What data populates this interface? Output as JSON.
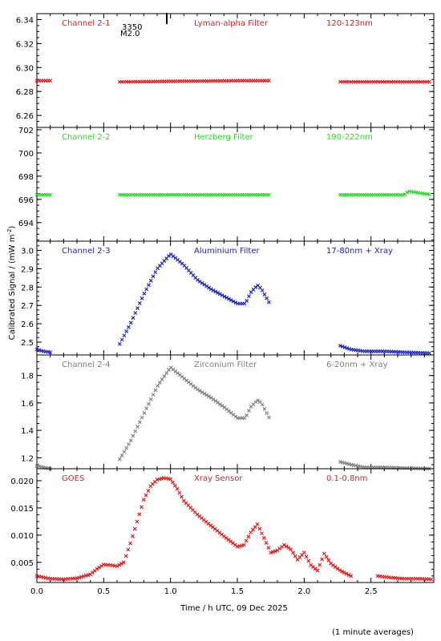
{
  "figure": {
    "ylabel": "Calibrated Signal / (mW m",
    "ylabel_sup": "-2",
    "ylabel_end": ")",
    "xlabel": "Time / h UTC, 09 Dec 2025",
    "footnote": "(1 minute averages)",
    "flare_class": "M2.0",
    "flare_id": "3350"
  },
  "chart_data": [
    {
      "type": "scatter",
      "channel": "Channel 2-1",
      "filter": "Lyman-alpha Filter",
      "band": "120-123nm",
      "color": "#e41a1a",
      "ylim": [
        6.25,
        6.345
      ],
      "yticks": [
        6.26,
        6.28,
        6.3,
        6.32,
        6.34
      ],
      "ytick_labels": [
        "6.26",
        "6.28",
        "6.30",
        "6.32",
        "6.34"
      ],
      "segments": [
        {
          "x": [
            0.0,
            0.1
          ],
          "y": [
            6.289,
            6.289
          ]
        },
        {
          "x": [
            0.62,
            1.0,
            1.5,
            1.75
          ],
          "y": [
            6.288,
            6.2885,
            6.289,
            6.289
          ]
        },
        {
          "x": [
            2.27,
            2.6,
            2.95
          ],
          "y": [
            6.288,
            6.288,
            6.288
          ]
        }
      ]
    },
    {
      "type": "scatter",
      "channel": "Channel 2-2",
      "filter": "Herzberg Filter",
      "band": "190-222nm",
      "color": "#22dd22",
      "ylim": [
        692.4,
        702.2
      ],
      "yticks": [
        694,
        696,
        698,
        700,
        702
      ],
      "ytick_labels": [
        "694",
        "696",
        "698",
        "700",
        "702"
      ],
      "segments": [
        {
          "x": [
            0.0,
            0.1
          ],
          "y": [
            696.4,
            696.4
          ]
        },
        {
          "x": [
            0.62,
            1.0,
            1.5,
            1.75
          ],
          "y": [
            696.4,
            696.4,
            696.4,
            696.4
          ]
        },
        {
          "x": [
            2.27,
            2.6,
            2.75,
            2.78,
            2.95
          ],
          "y": [
            696.4,
            696.4,
            696.4,
            696.7,
            696.4
          ]
        }
      ]
    },
    {
      "type": "scatter",
      "channel": "Channel 2-3",
      "filter": "Aluminium Filter",
      "band": "17-80nm + Xray",
      "color": "#1a22cc",
      "ylim": [
        2.43,
        3.05
      ],
      "yticks": [
        2.5,
        2.6,
        2.7,
        2.8,
        2.9,
        3.0
      ],
      "ytick_labels": [
        "2.5",
        "2.6",
        "2.7",
        "2.8",
        "2.9",
        "3.0"
      ],
      "segments": [
        {
          "x": [
            0.0,
            0.05,
            0.1
          ],
          "y": [
            2.46,
            2.45,
            2.445
          ]
        },
        {
          "x": [
            0.62,
            0.7,
            0.8,
            0.9,
            1.0,
            1.1,
            1.2,
            1.3,
            1.4,
            1.5,
            1.56,
            1.6,
            1.65,
            1.68,
            1.75
          ],
          "y": [
            2.49,
            2.6,
            2.76,
            2.9,
            2.98,
            2.92,
            2.84,
            2.79,
            2.75,
            2.71,
            2.71,
            2.77,
            2.81,
            2.79,
            2.7
          ]
        },
        {
          "x": [
            2.27,
            2.35,
            2.45,
            2.6,
            2.75,
            2.95
          ],
          "y": [
            2.48,
            2.46,
            2.45,
            2.45,
            2.445,
            2.44
          ]
        }
      ]
    },
    {
      "type": "scatter",
      "channel": "Channel 2-4",
      "filter": "Zirconium Filter",
      "band": "6-20nm + Xray",
      "color": "#808080",
      "ylim": [
        1.12,
        1.95
      ],
      "yticks": [
        1.2,
        1.4,
        1.6,
        1.8
      ],
      "ytick_labels": [
        "1.2",
        "1.4",
        "1.6",
        "1.8"
      ],
      "segments": [
        {
          "x": [
            0.0,
            0.05,
            0.1
          ],
          "y": [
            1.14,
            1.13,
            1.12
          ]
        },
        {
          "x": [
            0.62,
            0.7,
            0.8,
            0.9,
            1.0,
            1.1,
            1.2,
            1.3,
            1.4,
            1.5,
            1.56,
            1.6,
            1.65,
            1.68,
            1.75
          ],
          "y": [
            1.19,
            1.32,
            1.52,
            1.72,
            1.86,
            1.78,
            1.7,
            1.64,
            1.57,
            1.49,
            1.49,
            1.57,
            1.62,
            1.6,
            1.47
          ]
        },
        {
          "x": [
            2.27,
            2.35,
            2.45,
            2.6,
            2.75,
            2.95
          ],
          "y": [
            1.17,
            1.15,
            1.13,
            1.13,
            1.125,
            1.12
          ]
        }
      ]
    },
    {
      "type": "scatter",
      "channel": "GOES",
      "filter": "Xray Sensor",
      "band": "0.1-0.8nm",
      "color": "#e41a1a",
      "ylim": [
        0.0013,
        0.0222
      ],
      "yticks": [
        0.005,
        0.01,
        0.015,
        0.02
      ],
      "ytick_labels": [
        "0.005",
        "0.010",
        "0.015",
        "0.020"
      ],
      "xlim": [
        0.0,
        2.97
      ],
      "xticks": [
        0.0,
        0.5,
        1.0,
        1.5,
        2.0,
        2.5
      ],
      "xtick_labels": [
        "0.0",
        "0.5",
        "1.0",
        "1.5",
        "2.0",
        "2.5"
      ],
      "segments": [
        {
          "x": [
            0.0,
            0.1,
            0.2,
            0.3,
            0.4,
            0.45,
            0.5,
            0.55,
            0.6,
            0.65,
            0.7,
            0.75,
            0.8,
            0.85,
            0.9,
            0.95,
            1.0,
            1.05,
            1.1,
            1.2,
            1.3,
            1.4,
            1.5,
            1.55,
            1.6,
            1.65,
            1.7,
            1.75,
            1.8,
            1.85,
            1.9,
            1.95,
            2.0,
            2.05,
            2.1,
            2.15,
            2.2,
            2.27,
            2.35
          ],
          "y": [
            0.0025,
            0.002,
            0.0019,
            0.0021,
            0.0028,
            0.0038,
            0.0046,
            0.0045,
            0.0043,
            0.005,
            0.0085,
            0.0125,
            0.0165,
            0.019,
            0.0202,
            0.0205,
            0.0203,
            0.0185,
            0.0163,
            0.0138,
            0.0118,
            0.0098,
            0.0079,
            0.0082,
            0.0105,
            0.012,
            0.0095,
            0.0068,
            0.0072,
            0.0082,
            0.0074,
            0.0055,
            0.0068,
            0.0045,
            0.0035,
            0.0066,
            0.0048,
            0.0035,
            0.0025
          ]
        },
        {
          "x": [
            2.55,
            2.65,
            2.75,
            2.85,
            2.95
          ],
          "y": [
            0.0025,
            0.0022,
            0.002,
            0.002,
            0.0019
          ]
        }
      ]
    }
  ]
}
